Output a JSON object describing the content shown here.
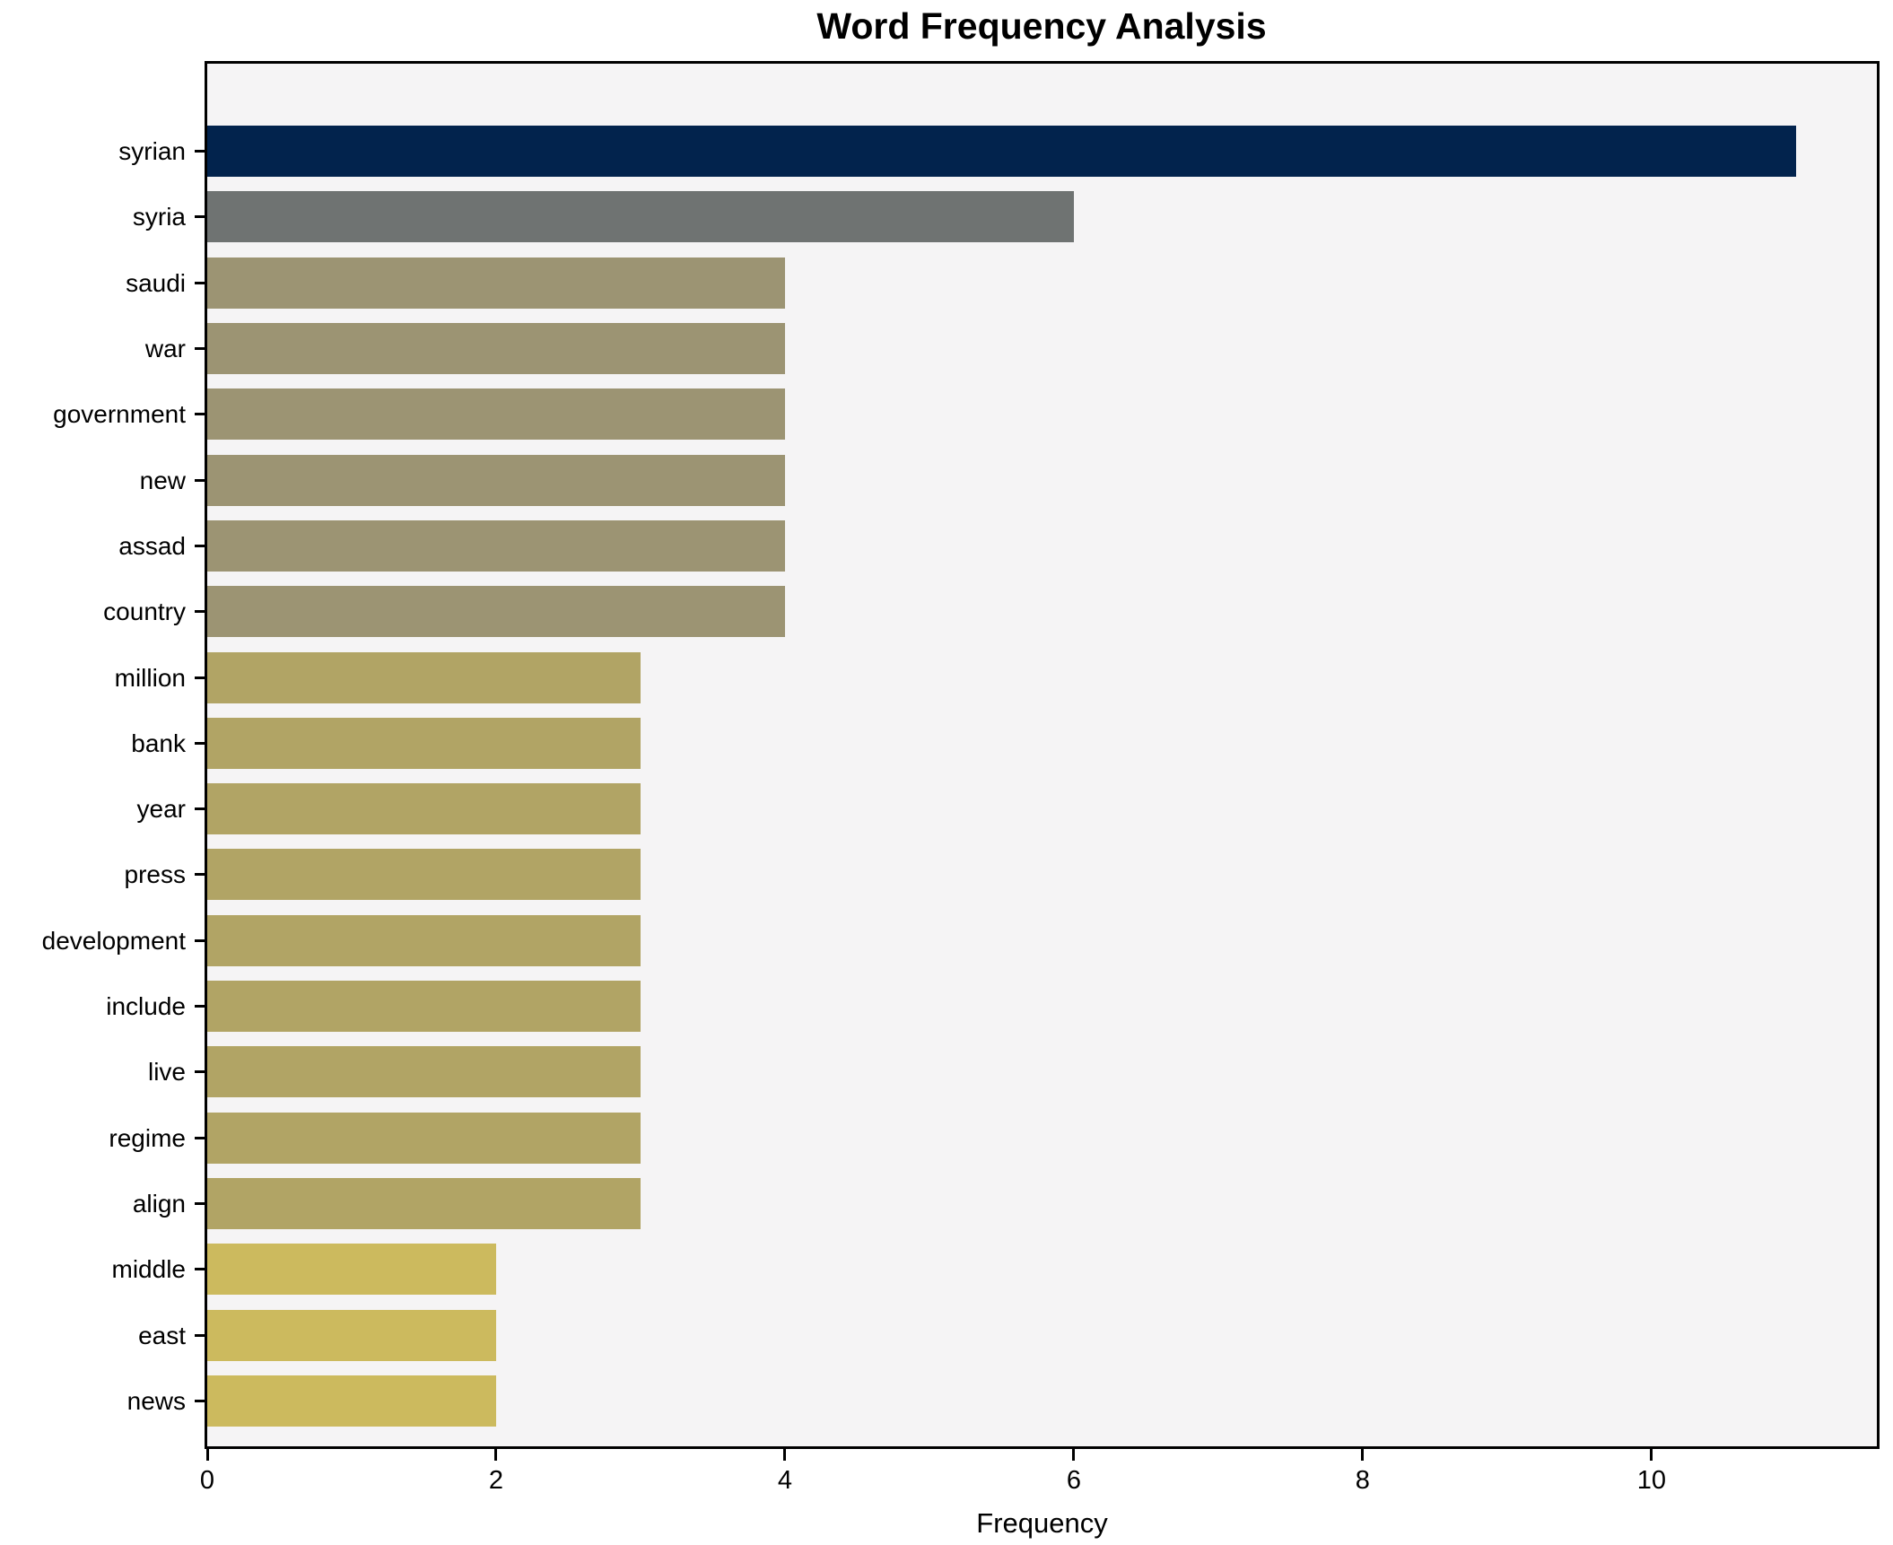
{
  "chart_data": {
    "type": "bar",
    "orientation": "horizontal",
    "title": "Word Frequency Analysis",
    "xlabel": "Frequency",
    "ylabel": "",
    "categories": [
      "syrian",
      "syria",
      "saudi",
      "war",
      "government",
      "new",
      "assad",
      "country",
      "million",
      "bank",
      "year",
      "press",
      "development",
      "include",
      "live",
      "regime",
      "align",
      "middle",
      "east",
      "news"
    ],
    "values": [
      11,
      6,
      4,
      4,
      4,
      4,
      4,
      4,
      3,
      3,
      3,
      3,
      3,
      3,
      3,
      3,
      3,
      2,
      2,
      2
    ],
    "bar_colors": [
      "#02234d",
      "#6f7372",
      "#9c9473",
      "#9c9473",
      "#9c9473",
      "#9c9473",
      "#9c9473",
      "#9c9473",
      "#b1a465",
      "#b1a465",
      "#b1a465",
      "#b1a465",
      "#b1a465",
      "#b1a465",
      "#b1a465",
      "#b1a465",
      "#b1a465",
      "#ccba5e",
      "#ccba5e",
      "#ccba5e"
    ],
    "xticks": [
      0,
      2,
      4,
      6,
      8,
      10
    ],
    "xlim": [
      0,
      11.56
    ],
    "grid": false,
    "legend_position": "none",
    "plot_background": "#f5f4f5",
    "figure_background": "#ffffff",
    "axis_color": "#000000",
    "text_color": "#000000"
  }
}
